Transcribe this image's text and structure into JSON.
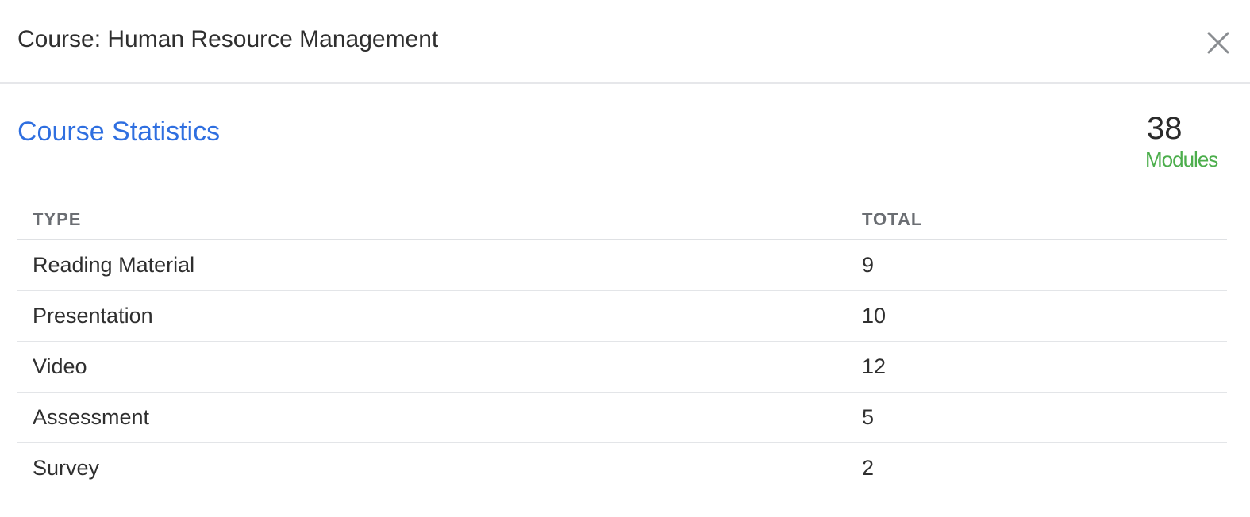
{
  "header": {
    "title": "Course: Human Resource Management",
    "close_icon": "close-icon"
  },
  "stats": {
    "title": "Course Statistics",
    "module_count": "38",
    "module_label": "Modules",
    "colors": {
      "title": "#2f6fe0",
      "module_label": "#4cae4c"
    }
  },
  "table": {
    "headers": [
      "TYPE",
      "TOTAL"
    ],
    "rows": [
      {
        "type": "Reading Material",
        "total": "9"
      },
      {
        "type": "Presentation",
        "total": "10"
      },
      {
        "type": "Video",
        "total": "12"
      },
      {
        "type": "Assessment",
        "total": "5"
      },
      {
        "type": "Survey",
        "total": "2"
      }
    ]
  }
}
